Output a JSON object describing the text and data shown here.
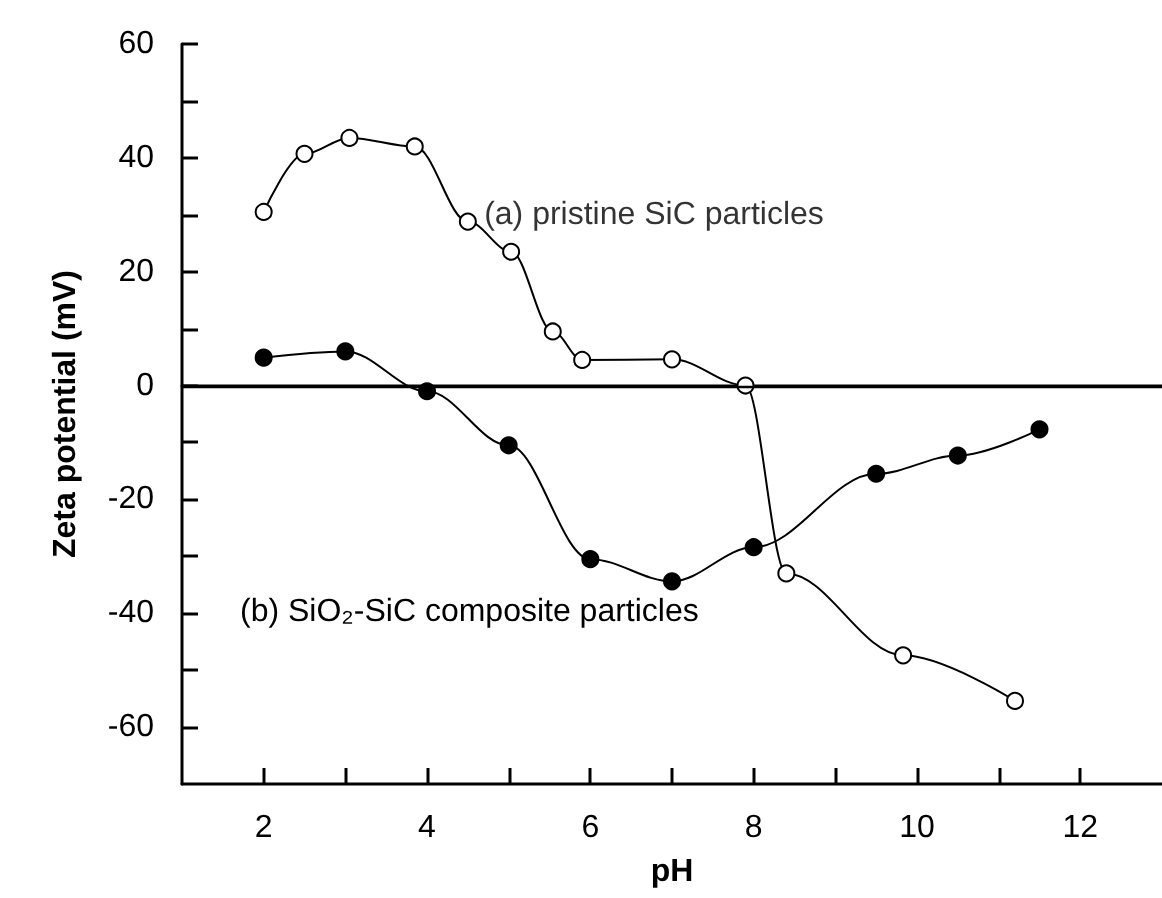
{
  "chart_data": {
    "type": "line",
    "xlabel": "pH",
    "ylabel": "Zeta potential (mV)",
    "xlim": [
      1,
      13
    ],
    "ylim": [
      -70,
      60
    ],
    "xticks": [
      2,
      {
        "value": 3,
        "label": null
      },
      4,
      {
        "value": 5,
        "label": null
      },
      6,
      {
        "value": 7,
        "label": null
      },
      8,
      {
        "value": 9,
        "label": null
      },
      10,
      {
        "value": 11,
        "label": null
      },
      12
    ],
    "yticks": [
      -60,
      {
        "value": -50,
        "label": null
      },
      -40,
      {
        "value": -30,
        "label": null
      },
      -20,
      {
        "value": -10,
        "label": null
      },
      0,
      {
        "value": 10,
        "label": null
      },
      20,
      {
        "value": 30,
        "label": null
      },
      40,
      {
        "value": 50,
        "label": null
      },
      60
    ],
    "line_style": "solid",
    "series": [
      {
        "color": "#000000",
        "marker": "circle",
        "x": [
          2,
          2.5,
          3.05,
          3.85,
          4.5,
          5.03,
          5.54,
          5.9,
          7,
          7.9,
          8.4,
          9.83,
          11.2
        ],
        "values": [
          30.5,
          40.7,
          43.5,
          42,
          28.8,
          23.5,
          9.5,
          4.5,
          4.6,
          0,
          -33,
          -47.4,
          -55.4
        ]
      },
      {
        "color": "#000000",
        "marker": "circle",
        "x": [
          2,
          3,
          4,
          5,
          6,
          7,
          8,
          9.5,
          10.5,
          11.5
        ],
        "values": [
          4.9,
          6,
          -1,
          -10.5,
          -30.5,
          -34.4,
          -28.4,
          -15.5,
          -12.3,
          -7.7
        ]
      }
    ],
    "ref_lines": [
      {
        "axis": "y",
        "value": 0,
        "color": "#000000",
        "line_style": "solid"
      }
    ],
    "annotations": [
      {
        "text": "(a) pristine SiC particles",
        "x": 4.7,
        "y": 30
      },
      "(b) SiO₂-SiC composite particles"
    ]
  }
}
